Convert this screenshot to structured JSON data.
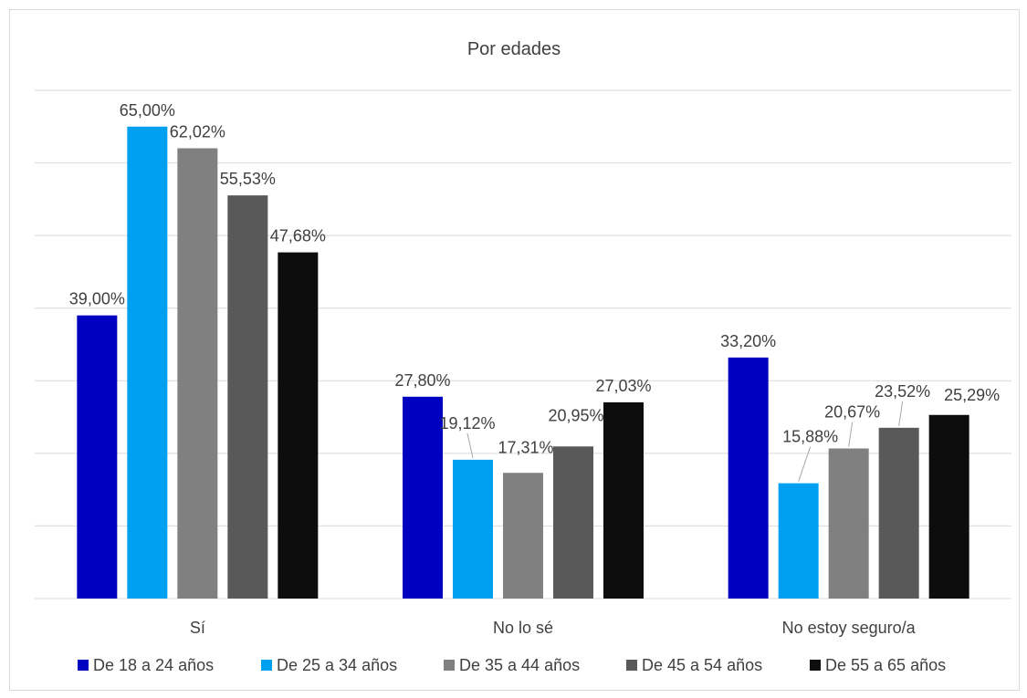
{
  "chart_data": {
    "type": "bar",
    "title": "Por edades",
    "categories": [
      "Sí",
      "No lo sé",
      "No estoy seguro/a"
    ],
    "series": [
      {
        "name": "De 18 a 24 años",
        "color": "#0000C0",
        "values": [
          39.0,
          27.8,
          33.2
        ],
        "labels": [
          "39,00%",
          "27,80%",
          "33,20%"
        ]
      },
      {
        "name": "De 25 a 34 años",
        "color": "#00A0F0",
        "values": [
          65.0,
          19.12,
          15.88
        ],
        "labels": [
          "65,00%",
          "19,12%",
          "15,88%"
        ]
      },
      {
        "name": "De 35 a 44 años",
        "color": "#808080",
        "values": [
          62.02,
          17.31,
          20.67
        ],
        "labels": [
          "62,02%",
          "17,31%",
          "20,67%"
        ]
      },
      {
        "name": "De 45 a 54 años",
        "color": "#595959",
        "values": [
          55.53,
          20.95,
          23.52
        ],
        "labels": [
          "55,53%",
          "20,95%",
          "23,52%"
        ]
      },
      {
        "name": "De 55 a 65 años",
        "color": "#0D0D0D",
        "values": [
          47.68,
          27.03,
          25.29
        ],
        "labels": [
          "47,68%",
          "27,03%",
          "25,29%"
        ]
      }
    ],
    "ylim": [
      0,
      70
    ],
    "y_axis_labels_shown": false,
    "grid": true,
    "legend_position": "bottom",
    "xlabel": "",
    "ylabel": ""
  }
}
